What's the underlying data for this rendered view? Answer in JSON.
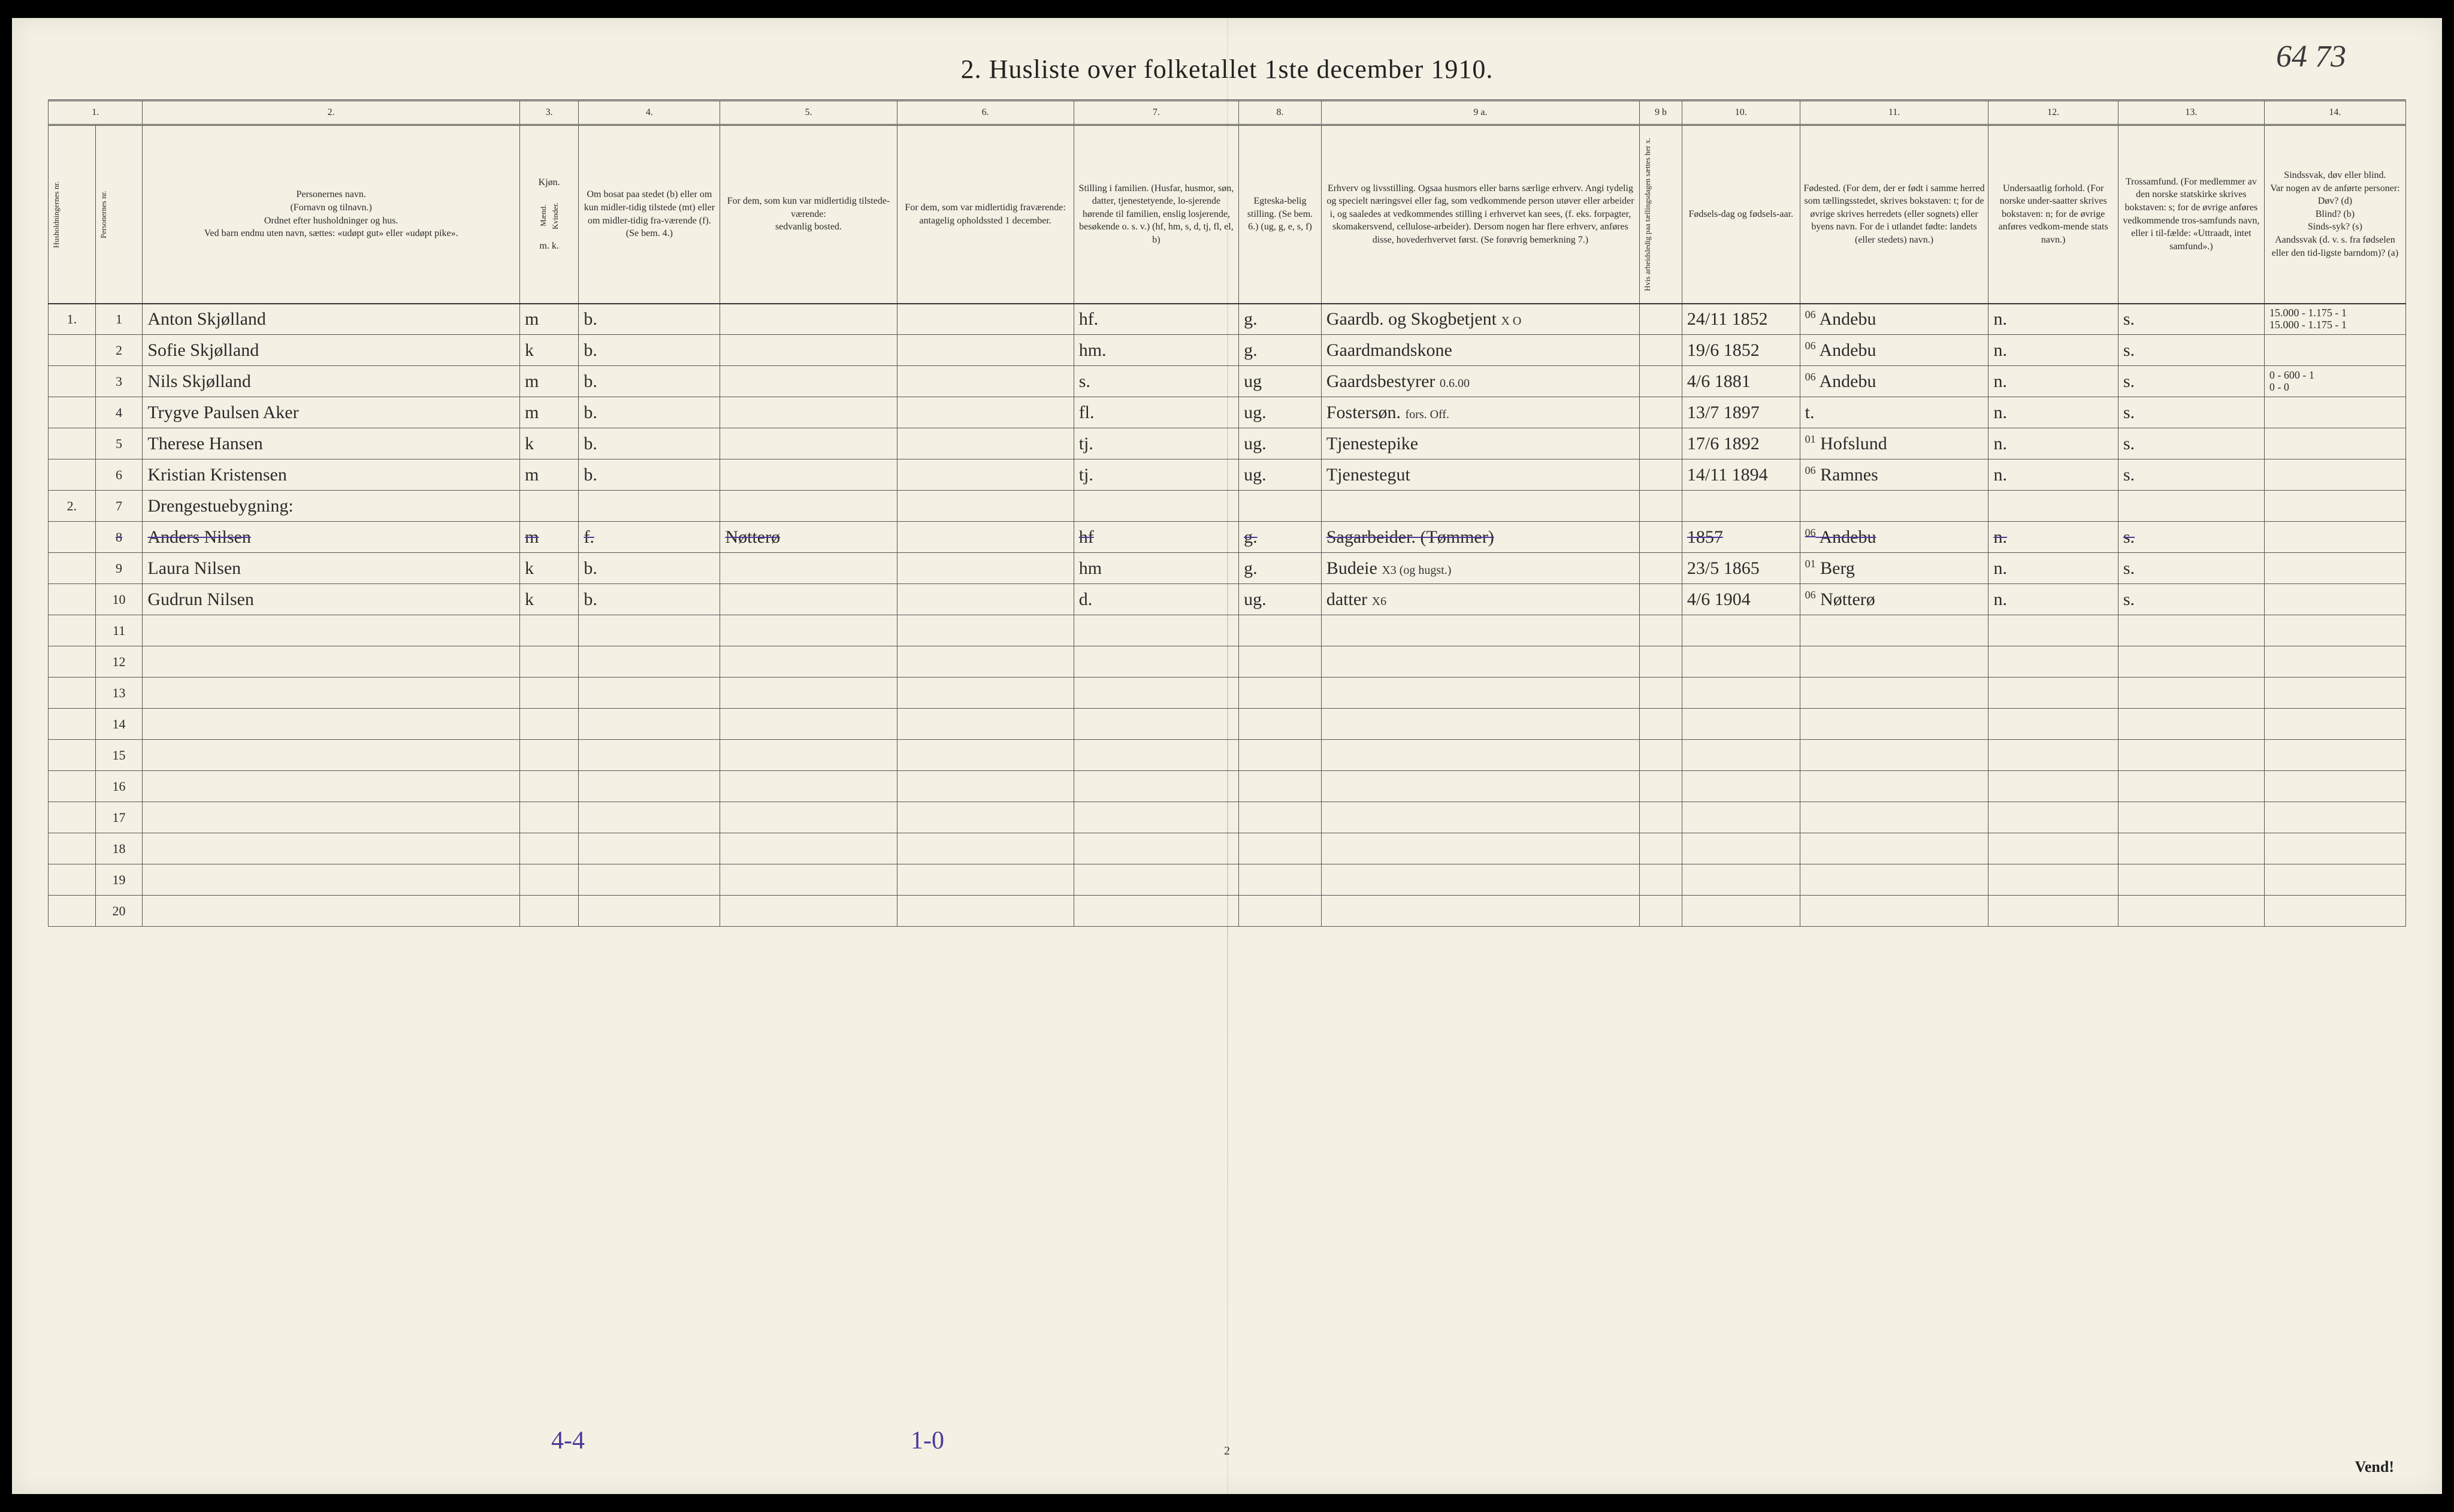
{
  "document": {
    "title": "2.  Husliste over folketallet 1ste december 1910.",
    "handwritten_page_numbers": "64 73",
    "footer_page": "2",
    "footer_turn": "Vend!",
    "tally_left": "4-4",
    "tally_right": "1-0"
  },
  "columns": {
    "numbers": [
      "1.",
      "2.",
      "3.",
      "4.",
      "5.",
      "6.",
      "7.",
      "8.",
      "9 a.",
      "9 b",
      "10.",
      "11.",
      "12.",
      "13.",
      "14."
    ],
    "headers": {
      "c1a": "Husholdningernes nr.",
      "c1b": "Personernes nr.",
      "c2": "Personernes navn.\n(Fornavn og tilnavn.)\nOrdnet efter husholdninger og hus.\nVed barn endnu uten navn, sættes: «udøpt gut» eller «udøpt pike».",
      "c3": "Kjøn.",
      "c3a": "Mænd.",
      "c3b": "Kvinder.",
      "c3sub": "m. k.",
      "c4": "Om bosat paa stedet (b) eller om kun midler-tidig tilstede (mt) eller om midler-tidig fra-værende (f). (Se bem. 4.)",
      "c5": "For dem, som kun var midlertidig tilstede-værende:\nsedvanlig bosted.",
      "c6": "For dem, som var midlertidig fraværende:\nantagelig opholdssted 1 december.",
      "c7": "Stilling i familien.\n(Husfar, husmor, søn, datter, tjenestetyende, lo-sjerende hørende til familien, enslig losjerende, besøkende o. s. v.)\n(hf, hm, s, d, tj, fl, el, b)",
      "c8": "Egteska-belig stilling. (Se bem. 6.) (ug, g, e, s, f)",
      "c9a": "Erhverv og livsstilling.\nOgsaa husmors eller barns særlige erhverv. Angi tydelig og specielt næringsvei eller fag, som vedkommende person utøver eller arbeider i, og saaledes at vedkommendes stilling i erhvervet kan sees, (f. eks. forpagter, skomakersvend, cellulose-arbeider). Dersom nogen har flere erhverv, anføres disse, hovederhvervet først. (Se forøvrig bemerkning 7.)",
      "c9b": "Hvis arbeidsledig paa tællingsdagen sættes her x.",
      "c10": "Fødsels-dag og fødsels-aar.",
      "c11": "Fødested.\n(For dem, der er født i samme herred som tællingsstedet, skrives bokstaven: t; for de øvrige skrives herredets (eller sognets) eller byens navn. For de i utlandet fødte: landets (eller stedets) navn.)",
      "c12": "Undersaatlig forhold.\n(For norske under-saatter skrives bokstaven: n; for de øvrige anføres vedkom-mende stats navn.)",
      "c13": "Trossamfund.\n(For medlemmer av den norske statskirke skrives bokstaven: s; for de øvrige anføres vedkommende tros-samfunds navn, eller i til-fælde: «Uttraadt, intet samfund».)",
      "c14": "Sindssvak, døv eller blind.\nVar nogen av de anførte personer:\nDøv? (d)\nBlind? (b)\nSinds-syk? (s)\nAandssvak (d. v. s. fra fødselen eller den tid-ligste barndom)? (a)"
    }
  },
  "rows": [
    {
      "hh": "1.",
      "pn": "1",
      "name": "Anton Skjølland",
      "sex": "m",
      "res": "b.",
      "c5": "",
      "c6": "",
      "fam": "hf.",
      "mar": "g.",
      "occ": "Gaardb. og Skogbetjent",
      "note9a": "X O",
      "c9b": "",
      "birth": "24/11 1852",
      "place": "Andebu",
      "place_code": "06",
      "nat": "n.",
      "rel": "s.",
      "c14": "15.000 - 1.175 - 1\n15.000 - 1.175 - 1"
    },
    {
      "hh": "",
      "pn": "2",
      "name": "Sofie Skjølland",
      "sex": "k",
      "res": "b.",
      "c5": "",
      "c6": "",
      "fam": "hm.",
      "mar": "g.",
      "occ": "Gaardmandskone",
      "note9a": "",
      "c9b": "",
      "birth": "19/6 1852",
      "place": "Andebu",
      "place_code": "06",
      "nat": "n.",
      "rel": "s.",
      "c14": ""
    },
    {
      "hh": "",
      "pn": "3",
      "name": "Nils Skjølland",
      "sex": "m",
      "res": "b.",
      "c5": "",
      "c6": "",
      "fam": "s.",
      "mar": "ug",
      "occ": "Gaardsbestyrer",
      "note9a": "0.6.00",
      "c9b": "",
      "birth": "4/6 1881",
      "place": "Andebu",
      "place_code": "06",
      "nat": "n.",
      "rel": "s.",
      "c14": "0 - 600 - 1\n0 - 0"
    },
    {
      "hh": "",
      "pn": "4",
      "name": "Trygve Paulsen Aker",
      "sex": "m",
      "res": "b.",
      "c5": "",
      "c6": "",
      "fam": "fl.",
      "mar": "ug.",
      "occ": "Fostersøn.",
      "note9a": "fors. Off.",
      "c9b": "",
      "birth": "13/7 1897",
      "place": "t.",
      "place_code": "",
      "nat": "n.",
      "rel": "s.",
      "c14": ""
    },
    {
      "hh": "",
      "pn": "5",
      "name": "Therese Hansen",
      "sex": "k",
      "res": "b.",
      "c5": "",
      "c6": "",
      "fam": "tj.",
      "mar": "ug.",
      "occ": "Tjenestepike",
      "note9a": "",
      "c9b": "",
      "birth": "17/6 1892",
      "place": "Hofslund",
      "place_code": "01",
      "nat": "n.",
      "rel": "s.",
      "c14": ""
    },
    {
      "hh": "",
      "pn": "6",
      "name": "Kristian Kristensen",
      "sex": "m",
      "res": "b.",
      "c5": "",
      "c6": "",
      "fam": "tj.",
      "mar": "ug.",
      "occ": "Tjenestegut",
      "note9a": "",
      "c9b": "",
      "birth": "14/11 1894",
      "place": "Ramnes",
      "place_code": "06",
      "nat": "n.",
      "rel": "s.",
      "c14": ""
    },
    {
      "hh": "2.",
      "pn": "7",
      "name": "Drengestuebygning:",
      "sex": "",
      "res": "",
      "c5": "",
      "c6": "",
      "fam": "",
      "mar": "",
      "occ": "",
      "note9a": "",
      "c9b": "",
      "birth": "",
      "place": "",
      "place_code": "",
      "nat": "",
      "rel": "",
      "c14": ""
    },
    {
      "hh": "",
      "pn": "8",
      "name": "Anders Nilsen",
      "sex": "m",
      "res": "f.",
      "c5": "Nøtterø",
      "c6": "",
      "fam": "hf",
      "mar": "g.",
      "occ": "Sagarbeider. (Tømmer)",
      "note9a": "",
      "c9b": "",
      "birth": "1857",
      "place": "Andebu",
      "place_code": "06",
      "nat": "n.",
      "rel": "s.",
      "c14": "",
      "strike": true
    },
    {
      "hh": "",
      "pn": "9",
      "name": "Laura Nilsen",
      "sex": "k",
      "res": "b.",
      "c5": "",
      "c6": "",
      "fam": "hm",
      "mar": "g.",
      "occ": "Budeie",
      "note9a": "X3 (og hugst.)",
      "c9b": "",
      "birth": "23/5 1865",
      "place": "Berg",
      "place_code": "01",
      "nat": "n.",
      "rel": "s.",
      "c14": ""
    },
    {
      "hh": "",
      "pn": "10",
      "name": "Gudrun Nilsen",
      "sex": "k",
      "res": "b.",
      "c5": "",
      "c6": "",
      "fam": "d.",
      "mar": "ug.",
      "occ": "datter",
      "note9a": "X6",
      "c9b": "",
      "birth": "4/6 1904",
      "place": "Nøtterø",
      "place_code": "06",
      "nat": "n.",
      "rel": "s.",
      "c14": ""
    }
  ],
  "empty_rows": [
    11,
    12,
    13,
    14,
    15,
    16,
    17,
    18,
    19,
    20
  ],
  "layout": {
    "col_widths_pct": [
      2.0,
      2.0,
      16.0,
      2.5,
      6.0,
      7.5,
      7.5,
      7.0,
      3.5,
      13.5,
      1.8,
      5.0,
      8.0,
      5.5,
      6.2,
      6.0
    ]
  },
  "colors": {
    "paper": "#f4f1e4",
    "ink": "#2a2a2a",
    "rule": "#555555",
    "red": "#b03030",
    "pencil_blue": "#4a3a9a"
  }
}
